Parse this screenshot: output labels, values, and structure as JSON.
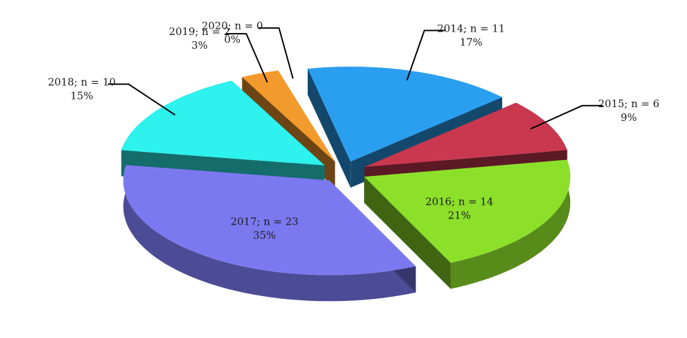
{
  "chart_data": {
    "type": "pie",
    "title": "",
    "exploded": true,
    "three_d": true,
    "slices": [
      {
        "category": "2014",
        "n": 11,
        "percent": 17,
        "label": "2014; n = 11",
        "pct_label": "17%",
        "color": "#2a9ff0",
        "label_side": "outside"
      },
      {
        "category": "2015",
        "n": 6,
        "percent": 9,
        "label": "2015; n = 6",
        "pct_label": "9%",
        "color": "#c9384f",
        "label_side": "outside"
      },
      {
        "category": "2016",
        "n": 14,
        "percent": 21,
        "label": "2016; n = 14",
        "pct_label": "21%",
        "color": "#8de02a",
        "label_side": "inside"
      },
      {
        "category": "2017",
        "n": 23,
        "percent": 35,
        "label": "2017; n = 23",
        "pct_label": "35%",
        "color": "#7b79f0",
        "label_side": "inside"
      },
      {
        "category": "2018",
        "n": 10,
        "percent": 15,
        "label": "2018; n = 10",
        "pct_label": "15%",
        "color": "#2df2ee",
        "label_side": "outside"
      },
      {
        "category": "2019",
        "n": 2,
        "percent": 3,
        "label": "2019; n = 2",
        "pct_label": "3%",
        "color": "#f39a2c",
        "label_side": "outside"
      },
      {
        "category": "2020",
        "n": 0,
        "percent": 0,
        "label": "2020; n = 0",
        "pct_label": "0%",
        "color": "#888888",
        "label_side": "outside"
      }
    ]
  }
}
